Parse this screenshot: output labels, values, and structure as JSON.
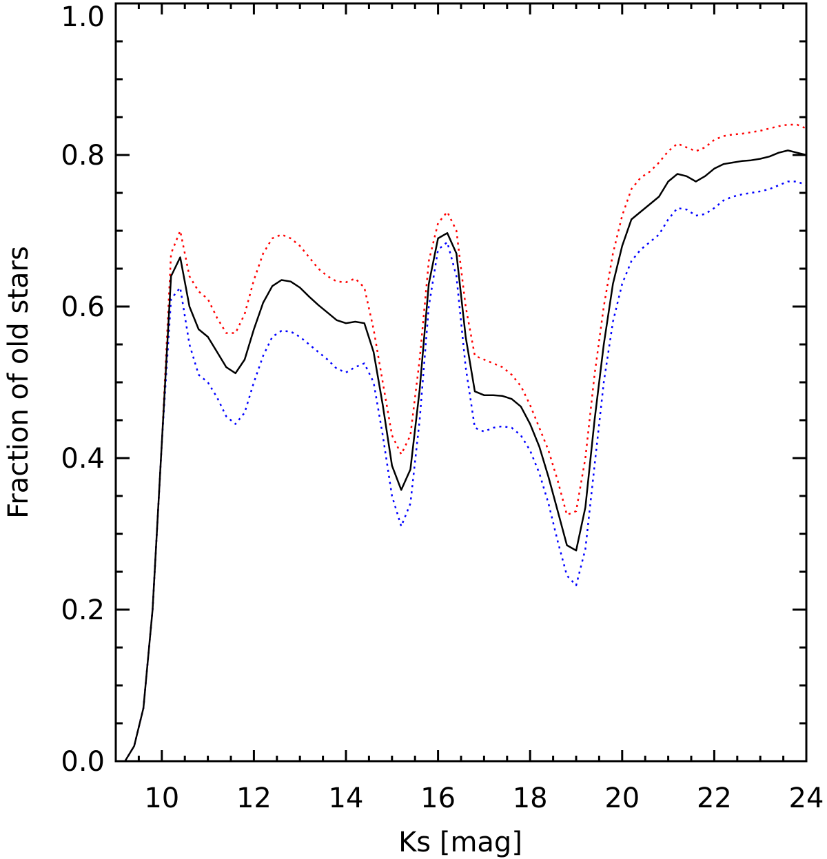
{
  "chart_data": {
    "type": "line",
    "title": "",
    "xlabel": "Ks [mag]",
    "ylabel": "Fraction of old stars",
    "xlim": [
      9.0,
      24.0
    ],
    "ylim": [
      0.0,
      1.0
    ],
    "xticks": [
      {
        "value": 10,
        "label": "10"
      },
      {
        "value": 12,
        "label": "12"
      },
      {
        "value": 14,
        "label": "14"
      },
      {
        "value": 16,
        "label": "16"
      },
      {
        "value": 18,
        "label": "18"
      },
      {
        "value": 20,
        "label": "20"
      },
      {
        "value": 22,
        "label": "22"
      },
      {
        "value": 24,
        "label": "24"
      }
    ],
    "yticks": [
      {
        "value": 0.0,
        "label": "0.0"
      },
      {
        "value": 0.2,
        "label": "0.2"
      },
      {
        "value": 0.4,
        "label": "0.4"
      },
      {
        "value": 0.6,
        "label": "0.6"
      },
      {
        "value": 0.8,
        "label": "0.8"
      },
      {
        "value": 1.0,
        "label": "1.0"
      }
    ],
    "x_minor_step": 0.5,
    "y_minor_step": 0.05,
    "grid": false,
    "legend": "none",
    "series": [
      {
        "color": "#ff0000",
        "style": "dotted",
        "x": [
          9.2,
          9.4,
          9.6,
          9.8,
          10.0,
          10.2,
          10.4,
          10.6,
          10.8,
          11.0,
          11.2,
          11.4,
          11.6,
          11.8,
          12.0,
          12.2,
          12.4,
          12.6,
          12.8,
          13.0,
          13.2,
          13.4,
          13.6,
          13.8,
          14.0,
          14.2,
          14.4,
          14.6,
          14.8,
          15.0,
          15.2,
          15.4,
          15.6,
          15.8,
          16.0,
          16.2,
          16.4,
          16.6,
          16.8,
          17.0,
          17.2,
          17.4,
          17.6,
          17.8,
          18.0,
          18.2,
          18.4,
          18.6,
          18.8,
          19.0,
          19.2,
          19.4,
          19.6,
          19.8,
          20.0,
          20.2,
          20.4,
          20.6,
          20.8,
          21.0,
          21.2,
          21.4,
          21.6,
          21.8,
          22.0,
          22.2,
          22.4,
          22.6,
          22.8,
          23.0,
          23.2,
          23.4,
          23.6,
          23.8,
          24.0
        ],
        "y": [
          0.0,
          0.02,
          0.07,
          0.2,
          0.42,
          0.67,
          0.7,
          0.64,
          0.62,
          0.61,
          0.585,
          0.565,
          0.565,
          0.59,
          0.635,
          0.67,
          0.69,
          0.695,
          0.69,
          0.68,
          0.665,
          0.65,
          0.64,
          0.633,
          0.632,
          0.637,
          0.625,
          0.57,
          0.5,
          0.43,
          0.405,
          0.43,
          0.53,
          0.66,
          0.71,
          0.725,
          0.7,
          0.6,
          0.535,
          0.53,
          0.525,
          0.52,
          0.51,
          0.495,
          0.47,
          0.44,
          0.41,
          0.37,
          0.325,
          0.33,
          0.4,
          0.51,
          0.6,
          0.67,
          0.72,
          0.755,
          0.77,
          0.778,
          0.79,
          0.805,
          0.815,
          0.81,
          0.805,
          0.81,
          0.82,
          0.825,
          0.827,
          0.828,
          0.83,
          0.832,
          0.835,
          0.838,
          0.84,
          0.84,
          0.835
        ]
      },
      {
        "color": "#0000ff",
        "style": "dotted",
        "x": [
          9.2,
          9.4,
          9.6,
          9.8,
          10.0,
          10.2,
          10.4,
          10.6,
          10.8,
          11.0,
          11.2,
          11.4,
          11.6,
          11.8,
          12.0,
          12.2,
          12.4,
          12.6,
          12.8,
          13.0,
          13.2,
          13.4,
          13.6,
          13.8,
          14.0,
          14.2,
          14.4,
          14.6,
          14.8,
          15.0,
          15.2,
          15.4,
          15.6,
          15.8,
          16.0,
          16.2,
          16.4,
          16.6,
          16.8,
          17.0,
          17.2,
          17.4,
          17.6,
          17.8,
          18.0,
          18.2,
          18.4,
          18.6,
          18.8,
          19.0,
          19.2,
          19.4,
          19.6,
          19.8,
          20.0,
          20.2,
          20.4,
          20.6,
          20.8,
          21.0,
          21.2,
          21.4,
          21.6,
          21.8,
          22.0,
          22.2,
          22.4,
          22.6,
          22.8,
          23.0,
          23.2,
          23.4,
          23.6,
          23.8,
          24.0
        ],
        "y": [
          0.0,
          0.02,
          0.07,
          0.2,
          0.42,
          0.61,
          0.625,
          0.55,
          0.51,
          0.5,
          0.48,
          0.455,
          0.445,
          0.46,
          0.5,
          0.535,
          0.56,
          0.568,
          0.567,
          0.56,
          0.55,
          0.54,
          0.53,
          0.518,
          0.513,
          0.52,
          0.525,
          0.5,
          0.43,
          0.35,
          0.31,
          0.34,
          0.45,
          0.6,
          0.675,
          0.685,
          0.64,
          0.52,
          0.44,
          0.435,
          0.44,
          0.442,
          0.44,
          0.43,
          0.41,
          0.38,
          0.34,
          0.29,
          0.245,
          0.232,
          0.28,
          0.39,
          0.5,
          0.58,
          0.63,
          0.66,
          0.675,
          0.685,
          0.695,
          0.715,
          0.73,
          0.728,
          0.72,
          0.722,
          0.73,
          0.74,
          0.745,
          0.748,
          0.75,
          0.752,
          0.755,
          0.76,
          0.765,
          0.765,
          0.76
        ]
      },
      {
        "color": "#000000",
        "style": "solid",
        "x": [
          9.2,
          9.4,
          9.6,
          9.8,
          10.0,
          10.2,
          10.4,
          10.6,
          10.8,
          11.0,
          11.2,
          11.4,
          11.6,
          11.8,
          12.0,
          12.2,
          12.4,
          12.6,
          12.8,
          13.0,
          13.2,
          13.4,
          13.6,
          13.8,
          14.0,
          14.2,
          14.4,
          14.6,
          14.8,
          15.0,
          15.2,
          15.4,
          15.6,
          15.8,
          16.0,
          16.2,
          16.4,
          16.6,
          16.8,
          17.0,
          17.2,
          17.4,
          17.6,
          17.8,
          18.0,
          18.2,
          18.4,
          18.6,
          18.8,
          19.0,
          19.2,
          19.4,
          19.6,
          19.8,
          20.0,
          20.2,
          20.4,
          20.6,
          20.8,
          21.0,
          21.2,
          21.4,
          21.6,
          21.8,
          22.0,
          22.2,
          22.4,
          22.6,
          22.8,
          23.0,
          23.2,
          23.4,
          23.6,
          23.8,
          24.0
        ],
        "y": [
          0.0,
          0.02,
          0.07,
          0.2,
          0.42,
          0.64,
          0.665,
          0.6,
          0.57,
          0.56,
          0.54,
          0.52,
          0.512,
          0.53,
          0.57,
          0.605,
          0.627,
          0.635,
          0.633,
          0.625,
          0.613,
          0.602,
          0.592,
          0.582,
          0.578,
          0.58,
          0.578,
          0.54,
          0.47,
          0.39,
          0.358,
          0.385,
          0.49,
          0.63,
          0.69,
          0.697,
          0.67,
          0.56,
          0.488,
          0.483,
          0.483,
          0.482,
          0.478,
          0.468,
          0.445,
          0.415,
          0.375,
          0.33,
          0.285,
          0.278,
          0.335,
          0.45,
          0.55,
          0.63,
          0.68,
          0.715,
          0.725,
          0.735,
          0.745,
          0.765,
          0.775,
          0.772,
          0.765,
          0.772,
          0.782,
          0.788,
          0.79,
          0.792,
          0.793,
          0.795,
          0.798,
          0.803,
          0.806,
          0.803,
          0.8
        ]
      }
    ]
  }
}
